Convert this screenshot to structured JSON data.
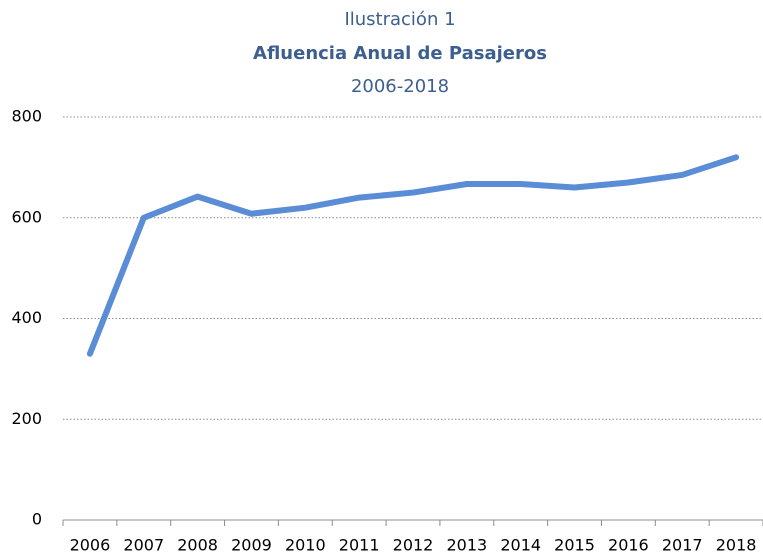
{
  "chart_data": {
    "type": "line",
    "label": "Ilustración 1",
    "title": "Afluencia Anual de Pasajeros",
    "subtitle": "2006-2018",
    "categories": [
      "2006",
      "2007",
      "2008",
      "2009",
      "2010",
      "2011",
      "2012",
      "2013",
      "2014",
      "2015",
      "2016",
      "2017",
      "2018"
    ],
    "values": [
      330,
      600,
      642,
      608,
      620,
      640,
      650,
      667,
      667,
      660,
      670,
      685,
      720
    ],
    "color": "#5b8dd6",
    "ylim": [
      0,
      800
    ],
    "yticks": [
      0,
      200,
      400,
      600,
      800
    ],
    "grid": true
  }
}
